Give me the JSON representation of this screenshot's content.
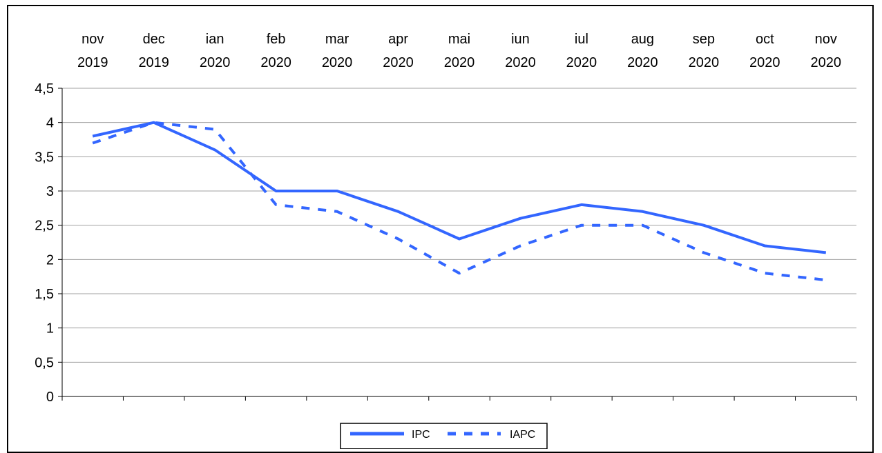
{
  "chart_data": {
    "type": "line",
    "categories": [
      [
        "nov",
        "2019"
      ],
      [
        "dec",
        "2019"
      ],
      [
        "ian",
        "2020"
      ],
      [
        "feb",
        "2020"
      ],
      [
        "mar",
        "2020"
      ],
      [
        "apr",
        "2020"
      ],
      [
        "mai",
        "2020"
      ],
      [
        "iun",
        "2020"
      ],
      [
        "iul",
        "2020"
      ],
      [
        "aug",
        "2020"
      ],
      [
        "sep",
        "2020"
      ],
      [
        "oct",
        "2020"
      ],
      [
        "nov",
        "2020"
      ]
    ],
    "category_labels_position": "top",
    "series": [
      {
        "name": "IPC",
        "style": "solid",
        "color": "#3366ff",
        "values": [
          3.8,
          4.0,
          3.6,
          3.0,
          3.0,
          2.7,
          2.3,
          2.6,
          2.8,
          2.7,
          2.5,
          2.2,
          2.1
        ]
      },
      {
        "name": "IAPC",
        "style": "dashed",
        "color": "#3366ff",
        "values": [
          3.7,
          4.0,
          3.9,
          2.8,
          2.7,
          2.3,
          1.8,
          2.2,
          2.5,
          2.5,
          2.1,
          1.8,
          1.7
        ]
      }
    ],
    "ylim": [
      0,
      4.5
    ],
    "yticks": [
      "0",
      "0,5",
      "1",
      "1,5",
      "2",
      "2,5",
      "3",
      "3,5",
      "4",
      "4,5"
    ],
    "ytick_values": [
      0,
      0.5,
      1,
      1.5,
      2,
      2.5,
      3,
      3.5,
      4,
      4.5
    ],
    "grid": true,
    "legend": "bottom-center",
    "title": "",
    "xlabel": "",
    "ylabel": ""
  },
  "colors": {
    "series": "#3366ff",
    "grid": "#a0a0a0",
    "axis": "#000000"
  }
}
